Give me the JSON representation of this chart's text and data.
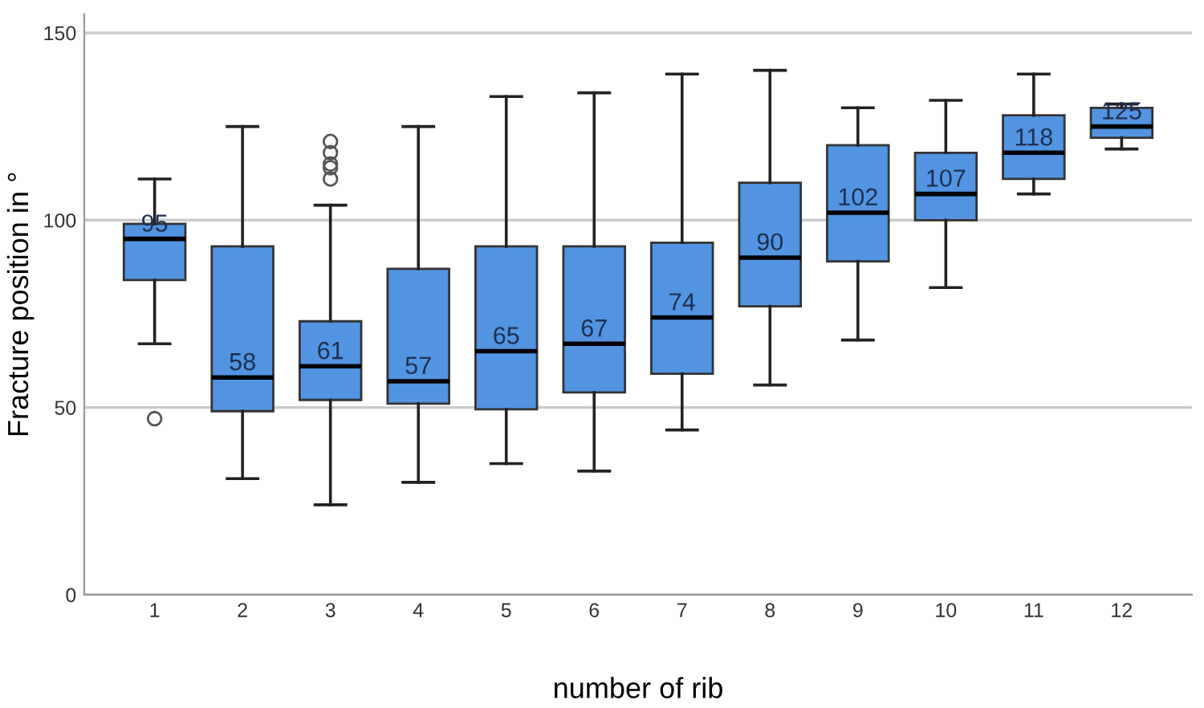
{
  "chart_data": {
    "type": "box",
    "xlabel": "number of rib",
    "ylabel": "Fracture position in °",
    "categories": [
      "1",
      "2",
      "3",
      "4",
      "5",
      "6",
      "7",
      "8",
      "9",
      "10",
      "11",
      "12"
    ],
    "color": "#5294e2",
    "boxes": [
      {
        "low": 67,
        "q1": 84,
        "median": 95,
        "q3": 99,
        "high": 111,
        "outliers": [
          47
        ]
      },
      {
        "low": 31,
        "q1": 49,
        "median": 58,
        "q3": 93,
        "high": 125
      },
      {
        "low": 24,
        "q1": 52,
        "median": 61,
        "q3": 73,
        "high": 104,
        "outliers": [
          121,
          118,
          115,
          114,
          111
        ]
      },
      {
        "low": 30,
        "q1": 51,
        "median": 57,
        "q3": 87,
        "high": 125
      },
      {
        "low": 35,
        "q1": 49.5,
        "median": 65,
        "q3": 93,
        "high": 133
      },
      {
        "low": 33,
        "q1": 54,
        "median": 67,
        "q3": 93,
        "high": 134
      },
      {
        "low": 44,
        "q1": 59,
        "median": 74,
        "q3": 94,
        "high": 139
      },
      {
        "low": 56,
        "q1": 77,
        "median": 90,
        "q3": 110,
        "high": 140
      },
      {
        "low": 68,
        "q1": 89,
        "median": 102,
        "q3": 120,
        "high": 130
      },
      {
        "low": 82,
        "q1": 100,
        "median": 107,
        "q3": 118,
        "high": 132
      },
      {
        "low": 107,
        "q1": 111,
        "median": 118,
        "q3": 128,
        "high": 139
      },
      {
        "low": 119,
        "q1": 122,
        "median": 125,
        "q3": 130,
        "high": 131
      }
    ],
    "annotations": [
      {
        "text": "95",
        "x": "1",
        "y": 95
      },
      {
        "text": "58",
        "x": "2",
        "y": 58
      },
      {
        "text": "61",
        "x": "3",
        "y": 61
      },
      {
        "text": "57",
        "x": "4",
        "y": 57
      },
      {
        "text": "65",
        "x": "5",
        "y": 65
      },
      {
        "text": "67",
        "x": "6",
        "y": 67
      },
      {
        "text": "74",
        "x": "7",
        "y": 74
      },
      {
        "text": "90",
        "x": "8",
        "y": 90
      },
      {
        "text": "102",
        "x": "9",
        "y": 102
      },
      {
        "text": "107",
        "x": "10",
        "y": 107
      },
      {
        "text": "118",
        "x": "11",
        "y": 118
      },
      {
        "text": "125",
        "x": "12",
        "y": 125
      }
    ],
    "ylim": [
      0,
      155
    ],
    "yticks": [
      0,
      50,
      100,
      150
    ],
    "grid": "y"
  }
}
